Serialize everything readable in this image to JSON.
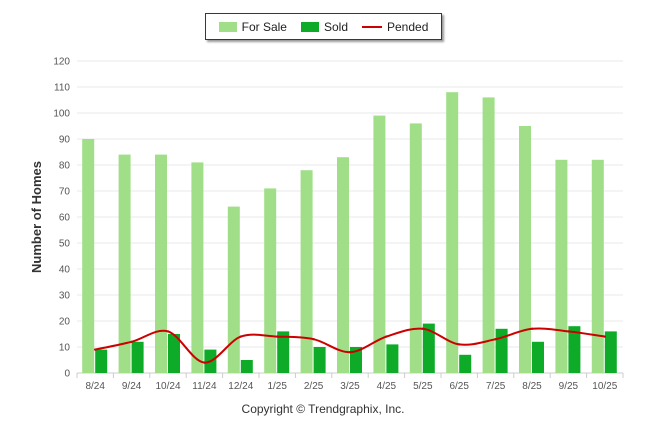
{
  "chart_data": {
    "type": "bar",
    "title": "",
    "xlabel": "",
    "ylabel": "Number of Homes",
    "ylim": [
      0,
      120
    ],
    "yticks": [
      "0",
      "10",
      "20",
      "30",
      "40",
      "50",
      "60",
      "70",
      "80",
      "90",
      "100",
      "110",
      "120"
    ],
    "grid": true,
    "legend_position": "top-center",
    "categories": [
      "8/24",
      "9/24",
      "10/24",
      "11/24",
      "12/24",
      "1/25",
      "2/25",
      "3/25",
      "4/25",
      "5/25",
      "6/25",
      "7/25",
      "8/25",
      "9/25",
      "10/25"
    ],
    "series": [
      {
        "name": "For Sale",
        "type": "bar",
        "color": "#a0df88",
        "values": [
          90,
          84,
          84,
          81,
          64,
          71,
          78,
          83,
          99,
          96,
          108,
          106,
          95,
          82,
          82
        ]
      },
      {
        "name": "Sold",
        "type": "bar",
        "color": "#0dab28",
        "values": [
          9,
          12,
          15,
          9,
          5,
          16,
          10,
          10,
          11,
          19,
          7,
          17,
          12,
          18,
          16
        ]
      },
      {
        "name": "Pended",
        "type": "line",
        "color": "#cc0000",
        "values": [
          9,
          12,
          16,
          4,
          14,
          14,
          13,
          8,
          14,
          17,
          11,
          13,
          17,
          16,
          14
        ]
      }
    ]
  },
  "footer": {
    "copyright": "Copyright © Trendgraphix, Inc."
  }
}
